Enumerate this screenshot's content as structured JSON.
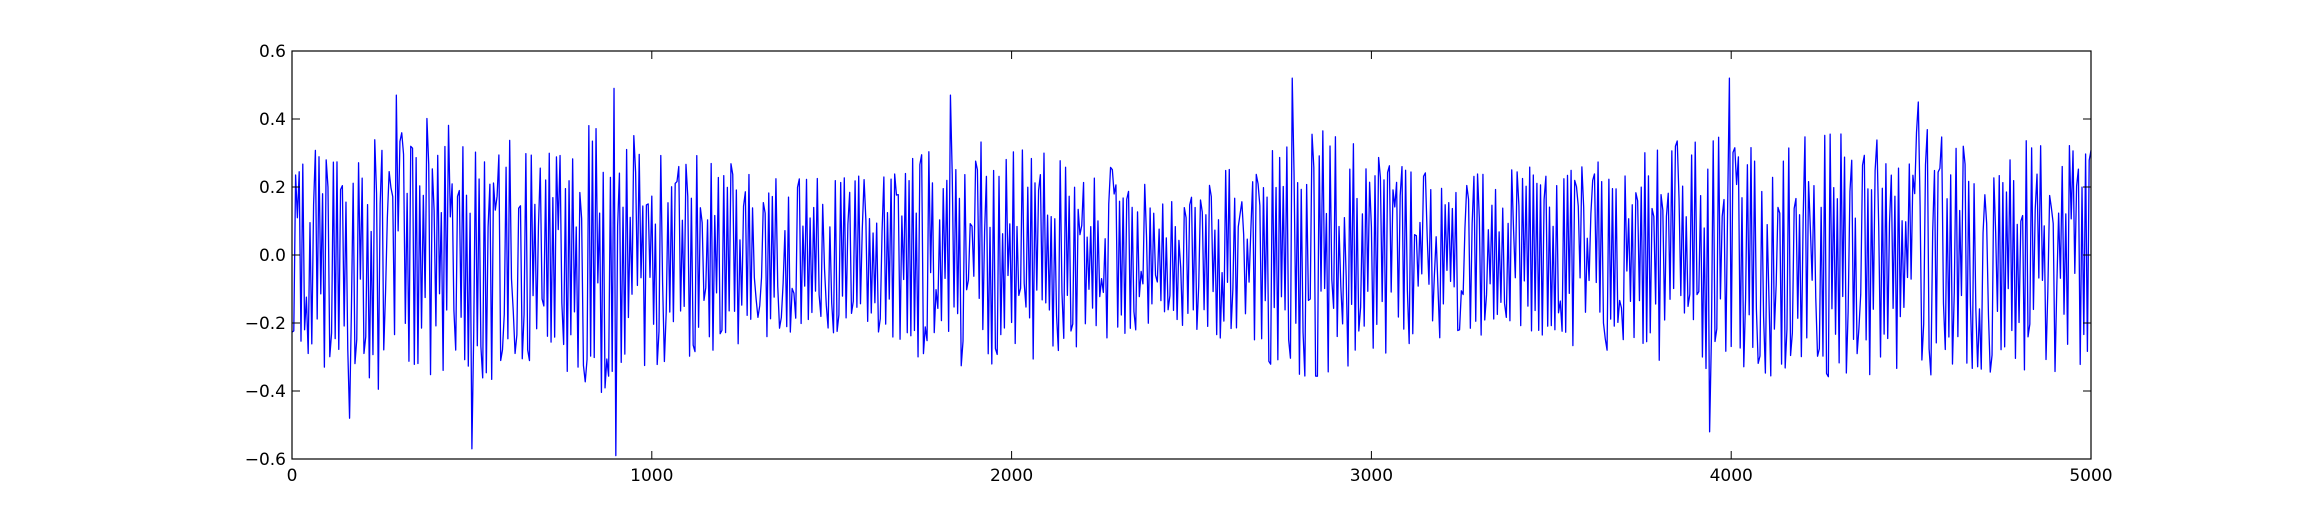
{
  "chart_data": {
    "type": "line",
    "title": "",
    "xlabel": "",
    "ylabel": "",
    "xlim": [
      0,
      5000
    ],
    "ylim": [
      -0.6,
      0.6
    ],
    "grid": false,
    "legend": false,
    "x_ticks": [
      0,
      1000,
      2000,
      3000,
      4000,
      5000
    ],
    "x_tick_labels": [
      "0",
      "1000",
      "2000",
      "3000",
      "4000",
      "5000"
    ],
    "y_ticks": [
      -0.6,
      -0.4,
      -0.2,
      0.0,
      0.2,
      0.4,
      0.6
    ],
    "y_tick_labels": [
      "−0.6",
      "−0.4",
      "−0.2",
      "0.0",
      "0.2",
      "0.4",
      "0.6"
    ],
    "series": [
      {
        "color": "#0000ff",
        "x_start": 0,
        "x_step": 5,
        "envelope_x": [
          0,
          150,
          300,
          450,
          600,
          750,
          900,
          1050,
          1200,
          1350,
          1500,
          1650,
          1800,
          1950,
          2100,
          2250,
          2400,
          2550,
          2700,
          2850,
          3000,
          3150,
          3300,
          3450,
          3600,
          3750,
          3900,
          4050,
          4200,
          4350,
          4500,
          4650,
          4800,
          5000
        ],
        "envelope_amp": [
          0.3,
          0.36,
          0.42,
          0.4,
          0.36,
          0.34,
          0.43,
          0.32,
          0.28,
          0.25,
          0.23,
          0.24,
          0.35,
          0.36,
          0.3,
          0.27,
          0.2,
          0.24,
          0.32,
          0.38,
          0.32,
          0.26,
          0.24,
          0.26,
          0.27,
          0.3,
          0.36,
          0.36,
          0.37,
          0.36,
          0.38,
          0.36,
          0.34,
          0.35
        ],
        "peaks": [
          {
            "x": 290,
            "y": 0.47
          },
          {
            "x": 500,
            "y": -0.57
          },
          {
            "x": 895,
            "y": 0.49
          },
          {
            "x": 900,
            "y": -0.59
          },
          {
            "x": 1830,
            "y": 0.47
          },
          {
            "x": 2780,
            "y": 0.52
          },
          {
            "x": 3995,
            "y": 0.52
          },
          {
            "x": 3940,
            "y": -0.52
          },
          {
            "x": 4520,
            "y": 0.45
          },
          {
            "x": 160,
            "y": -0.48
          }
        ]
      }
    ]
  }
}
